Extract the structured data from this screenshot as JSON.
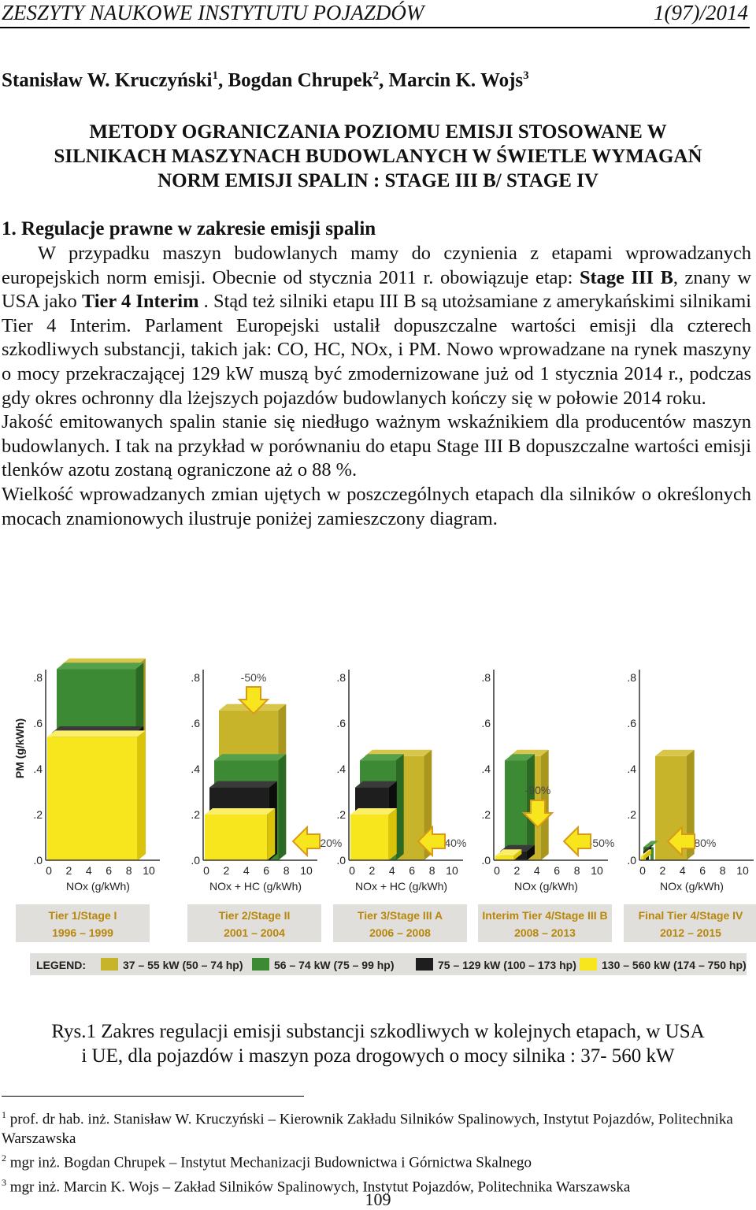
{
  "header": {
    "left": "ZESZYTY NAUKOWE INSTYTUTU POJAZDÓW",
    "right": "1(97)/2014"
  },
  "authors": {
    "a1": "Stanisław W. Kruczyński",
    "a2": "Bogdan Chrupek",
    "a3": "Marcin K. Wojs"
  },
  "title": {
    "line1": "METODY OGRANICZANIA POZIOMU EMISJI STOSOWANE W",
    "line2": "SILNIKACH  MASZYNACH BUDOWLANYCH  W ŚWIETLE WYMAGAŃ",
    "line3": "NORM EMISJI SPALIN : STAGE III B/ STAGE IV"
  },
  "section": "1. Regulacje prawne w zakresie emisji spalin",
  "body": {
    "p1a": "W przypadku  maszyn budowlanych mamy do czynienia z  etapami wprowadzanych europejskich norm emisji.  Obecnie od stycznia 2011 r. obowiązuje etap:  ",
    "p1b": "Stage III B",
    "p1c": ", znany w USA jako ",
    "p1d": "Tier 4 Interim",
    "p1e": " . Stąd też silniki etapu III B są utożsamiane z amerykańskimi silnikami Tier 4 Interim. Parlament Europejski ustalił dopuszczalne wartości emisji dla czterech szkodliwych substancji, takich jak: CO, HC, NOx, i PM. Nowo wprowadzane na rynek maszyny o mocy przekraczającej 129 kW  muszą  być zmodernizowane już od 1 stycznia 2014 r., podczas gdy okres ochronny dla lżejszych pojazdów budowlanych kończy się w połowie 2014 roku.",
    "p2": "Jakość emitowanych spalin stanie się niedługo ważnym wskaźnikiem  dla producentów maszyn budowlanych. I tak na przykład w porównaniu do etapu Stage III B dopuszczalne wartości emisji tlenków azotu zostaną ograniczone aż o 88 %.",
    "p3": "Wielkość wprowadzanych zmian ujętych w poszczególnych etapach dla silników o określonych mocach znamionowych ilustruje poniżej zamieszczony diagram."
  },
  "chart_data": {
    "type": "bar",
    "ylabel": "PM (g/kWh)",
    "y_ticks": [
      ".0",
      ".2",
      ".4",
      ".6",
      ".8"
    ],
    "x_ticks": [
      "0",
      "2",
      "4",
      "6",
      "8",
      "10"
    ],
    "ylim": [
      0,
      0.8
    ],
    "xlim": [
      0,
      10
    ],
    "panels": [
      {
        "xlabel": "NOx (g/kWh)",
        "stage": "Tier 1/Stage I",
        "years": "1996 – 1999",
        "annotations": []
      },
      {
        "xlabel": "NOx + HC (g/kWh)",
        "stage": "Tier 2/Stage II",
        "years": "2001 – 2004",
        "annotations": [
          "-50%",
          "-20%"
        ]
      },
      {
        "xlabel": "NOx + HC (g/kWh)",
        "stage": "Tier 3/Stage III A",
        "years": "2006 – 2008",
        "annotations": [
          "-40%"
        ]
      },
      {
        "xlabel": "NOx (g/kWh)",
        "stage": "Interim Tier 4/Stage III B",
        "years": "2008 – 2013",
        "annotations": [
          "-90%",
          "-50%"
        ]
      },
      {
        "xlabel": "NOx (g/kWh)",
        "stage": "Final Tier 4/Stage IV",
        "years": "2012 – 2015",
        "annotations": [
          "-80%"
        ]
      }
    ],
    "legend_label": "LEGEND:",
    "legend": [
      {
        "label": "37 – 55 kW (50 – 74 hp)",
        "color": "#c8b42a"
      },
      {
        "label": "56 – 74 kW (75 – 99 hp)",
        "color": "#3c8a34"
      },
      {
        "label": "75 – 129 kW (100 – 173 hp)",
        "color": "#1e1e1e"
      },
      {
        "label": "130 – 560 kW (174 – 750 hp)",
        "color": "#f7e51d"
      }
    ]
  },
  "caption": {
    "line1": "Rys.1  Zakres regulacji emisji substancji szkodliwych w kolejnych etapach, w USA",
    "line2": "i UE, dla pojazdów i maszyn poza drogowych o  mocy  silnika : 37- 560 kW"
  },
  "footnotes": {
    "f1": "prof. dr hab. inż. Stanisław W.  Kruczyński – Kierownik Zakładu Silników Spalinowych, Instytut  Pojazdów, Politechnika Warszawska",
    "f2": "mgr inż. Bogdan Chrupek – Instytut  Mechanizacji Budownictwa i Górnictwa Skalnego",
    "f3": "mgr inż. Marcin K. Wojs – Zakład Silników Spalinowych, Instytut  Pojazdów, Politechnika Warszawska"
  },
  "page_number": "109"
}
